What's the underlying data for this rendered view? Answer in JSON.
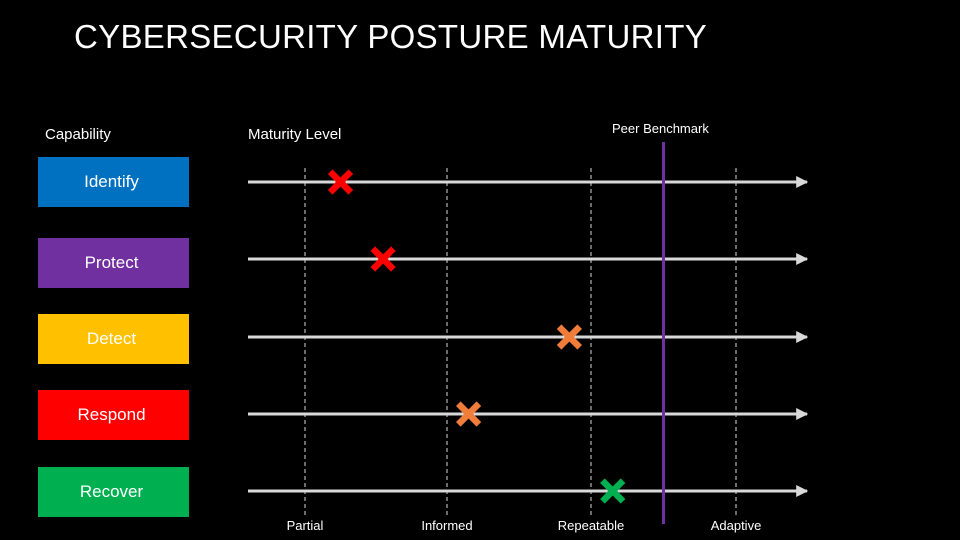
{
  "title": "CYBERSECURITY POSTURE MATURITY",
  "headers": {
    "capability": "Capability",
    "maturity": "Maturity Level",
    "peer": "Peer Benchmark"
  },
  "levels": [
    "Partial",
    "Informed",
    "Repeatable",
    "Adaptive"
  ],
  "capabilities": [
    {
      "label": "Identify",
      "color": "#0070c0",
      "score": 1.25,
      "marker_color": "#ff0000"
    },
    {
      "label": "Protect",
      "color": "#7030a0",
      "score": 1.55,
      "marker_color": "#ff0000"
    },
    {
      "label": "Detect",
      "color": "#ffc000",
      "score": 2.85,
      "marker_color": "#f07d3a"
    },
    {
      "label": "Respond",
      "color": "#ff0000",
      "score": 2.15,
      "marker_color": "#f07d3a"
    },
    {
      "label": "Recover",
      "color": "#00b050",
      "score": 3.15,
      "marker_color": "#00b050"
    }
  ],
  "peer_benchmark": 3.5,
  "colors": {
    "arrow": "#d9d9d9",
    "gridline": "#a6a6a6",
    "benchmark": "#7030a0",
    "background": "#000000"
  }
}
